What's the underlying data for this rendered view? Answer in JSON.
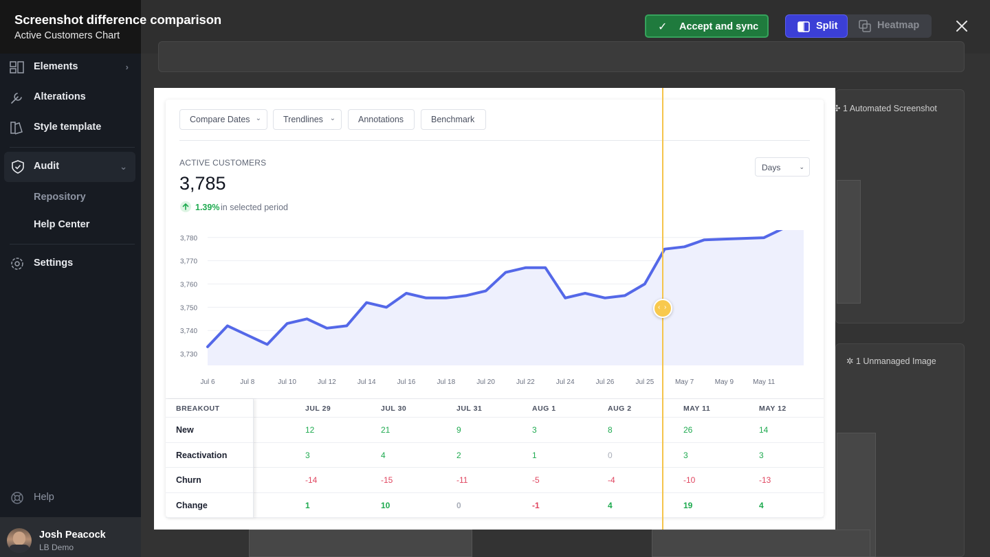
{
  "header": {
    "title": "Screenshot difference comparison",
    "subtitle": "Active Customers Chart",
    "accept_label": "Accept and sync",
    "split_label": "Split",
    "heatmap_label": "Heatmap",
    "view_mode": "split"
  },
  "sidebar": {
    "items": [
      {
        "label": "Elements",
        "icon": "elements-icon"
      },
      {
        "label": "Alterations",
        "icon": "wrench-icon"
      },
      {
        "label": "Style template",
        "icon": "style-template-icon"
      },
      {
        "label": "Audit",
        "icon": "shield-check-icon"
      },
      {
        "label": "Repository"
      },
      {
        "label": "Help Center"
      },
      {
        "label": "Settings",
        "icon": "gear-icon"
      }
    ],
    "help_label": "Help",
    "user": {
      "name": "Josh Peacock",
      "org": "LB Demo"
    }
  },
  "background": {
    "automated_label": "1 Automated Screenshot",
    "unmanaged_label": "1 Unmanaged Image"
  },
  "toolbar": {
    "compare_dates": "Compare Dates",
    "trendlines": "Trendlines",
    "annotations": "Annotations",
    "benchmark": "Benchmark"
  },
  "metric": {
    "label": "ACTIVE CUSTOMERS",
    "value": "3,785",
    "change_pct": "1.39%",
    "change_text": "in selected period",
    "period_select": "Days"
  },
  "chart_data": {
    "type": "area",
    "color": "#5468e8",
    "fill": "#eef0fd",
    "ylim": [
      3725,
      3782
    ],
    "yticks": [
      "3,780",
      "3,770",
      "3,760",
      "3,750",
      "3,740",
      "3,730"
    ],
    "ytick_values": [
      3780,
      3770,
      3760,
      3750,
      3740,
      3730
    ],
    "xticks": [
      "Jul 6",
      "Jul 8",
      "Jul 10",
      "Jul 12",
      "Jul 14",
      "Jul 16",
      "Jul 18",
      "Jul 20",
      "Jul 22",
      "Jul 24",
      "Jul 26",
      "Jul 25",
      "May 7",
      "May 9",
      "May 11"
    ],
    "series": [
      {
        "values": [
          3733,
          3742,
          3738,
          3734,
          3743,
          3745,
          3741,
          3742,
          3752,
          3750,
          3756,
          3754,
          3754,
          3755,
          3757,
          3765,
          3767,
          3767,
          3754,
          3756,
          3754,
          3755,
          3760,
          3775,
          3776,
          3779,
          3779.3,
          3779.6,
          3779.9,
          3784,
          3785
        ]
      }
    ]
  },
  "table": {
    "breakout_label": "BREAKOUT",
    "columns": [
      "JUL 29",
      "JUL 30",
      "JUL 31",
      "AUG 1",
      "AUG 2",
      "MAY 11",
      "MAY 12"
    ],
    "rows": [
      {
        "label": "New",
        "values": [
          "12",
          "21",
          "9",
          "3",
          "8",
          "26",
          "14"
        ],
        "tones": [
          "pos",
          "pos",
          "pos",
          "pos",
          "pos",
          "pos",
          "pos"
        ]
      },
      {
        "label": "Reactivation",
        "values": [
          "3",
          "4",
          "2",
          "1",
          "0",
          "3",
          "3"
        ],
        "tones": [
          "pos",
          "pos",
          "pos",
          "pos",
          "zero",
          "pos",
          "pos"
        ]
      },
      {
        "label": "Churn",
        "values": [
          "-14",
          "-15",
          "-11",
          "-5",
          "-4",
          "-10",
          "-13"
        ],
        "tones": [
          "neg",
          "neg",
          "neg",
          "neg",
          "neg",
          "neg",
          "neg"
        ]
      },
      {
        "label": "Change",
        "values": [
          "1",
          "10",
          "0",
          "-1",
          "4",
          "19",
          "4"
        ],
        "tones": [
          "pos",
          "pos",
          "zero",
          "neg",
          "pos",
          "pos",
          "pos"
        ]
      }
    ]
  }
}
